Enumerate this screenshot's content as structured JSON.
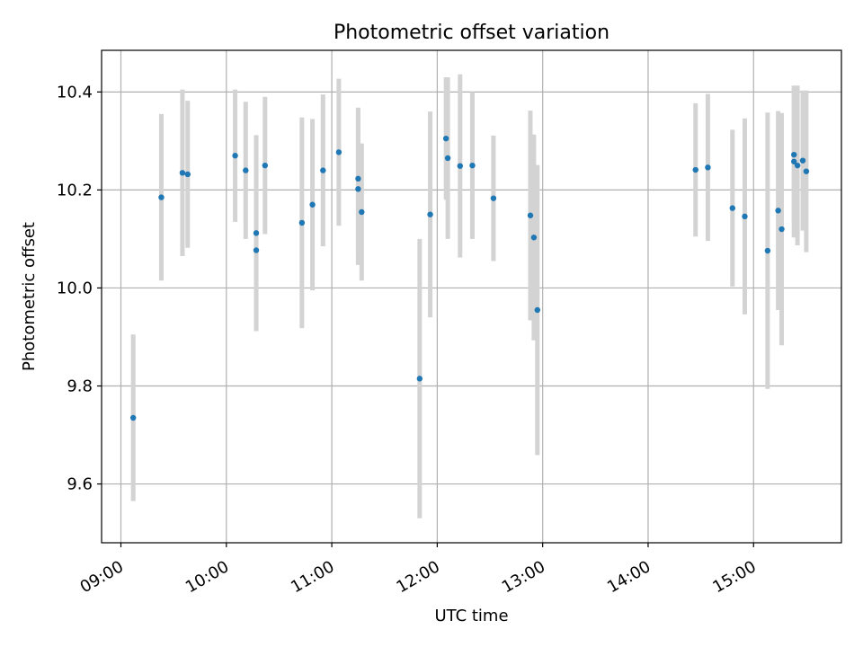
{
  "chart_data": {
    "type": "scatter",
    "title": "Photometric offset variation",
    "xlabel": "UTC time",
    "ylabel": "Photometric offset",
    "xlim": [
      "08:49",
      "15:50"
    ],
    "ylim": [
      9.48,
      10.485
    ],
    "x_ticks": [
      "09:00",
      "10:00",
      "11:00",
      "12:00",
      "13:00",
      "14:00",
      "15:00"
    ],
    "y_ticks": [
      9.6,
      9.8,
      10.0,
      10.2,
      10.4
    ],
    "grid": true,
    "colors": {
      "points": "#1f77b4",
      "errorbars": "#d3d3d3"
    },
    "points": [
      {
        "x": "09:07",
        "y": 9.735,
        "err": 0.17
      },
      {
        "x": "09:23",
        "y": 10.185,
        "err": 0.17
      },
      {
        "x": "09:35",
        "y": 10.235,
        "err": 0.17
      },
      {
        "x": "09:38",
        "y": 10.232,
        "err": 0.15
      },
      {
        "x": "10:05",
        "y": 10.27,
        "err": 0.135
      },
      {
        "x": "10:11",
        "y": 10.24,
        "err": 0.14
      },
      {
        "x": "10:17",
        "y": 10.112,
        "err": 0.2
      },
      {
        "x": "10:17",
        "y": 10.077,
        "err": 0.165
      },
      {
        "x": "10:22",
        "y": 10.25,
        "err": 0.14
      },
      {
        "x": "10:43",
        "y": 10.133,
        "err": 0.215
      },
      {
        "x": "10:49",
        "y": 10.17,
        "err": 0.175
      },
      {
        "x": "10:55",
        "y": 10.24,
        "err": 0.155
      },
      {
        "x": "11:04",
        "y": 10.277,
        "err": 0.15
      },
      {
        "x": "11:15",
        "y": 10.223,
        "err": 0.145
      },
      {
        "x": "11:15",
        "y": 10.202,
        "err": 0.155
      },
      {
        "x": "11:17",
        "y": 10.155,
        "err": 0.14
      },
      {
        "x": "11:50",
        "y": 9.815,
        "err": 0.285
      },
      {
        "x": "11:56",
        "y": 10.15,
        "err": 0.21
      },
      {
        "x": "12:05",
        "y": 10.305,
        "err": 0.125
      },
      {
        "x": "12:06",
        "y": 10.265,
        "err": 0.165
      },
      {
        "x": "12:13",
        "y": 10.249,
        "err": 0.187
      },
      {
        "x": "12:20",
        "y": 10.25,
        "err": 0.15
      },
      {
        "x": "12:32",
        "y": 10.183,
        "err": 0.128
      },
      {
        "x": "12:53",
        "y": 10.148,
        "err": 0.214
      },
      {
        "x": "12:55",
        "y": 10.103,
        "err": 0.21
      },
      {
        "x": "12:57",
        "y": 9.955,
        "err": 0.296
      },
      {
        "x": "14:27",
        "y": 10.241,
        "err": 0.136
      },
      {
        "x": "14:34",
        "y": 10.246,
        "err": 0.15
      },
      {
        "x": "14:48",
        "y": 10.163,
        "err": 0.16
      },
      {
        "x": "14:55",
        "y": 10.146,
        "err": 0.2
      },
      {
        "x": "15:08",
        "y": 10.076,
        "err": 0.282
      },
      {
        "x": "15:14",
        "y": 10.158,
        "err": 0.203
      },
      {
        "x": "15:16",
        "y": 10.12,
        "err": 0.237
      },
      {
        "x": "15:23",
        "y": 10.272,
        "err": 0.14
      },
      {
        "x": "15:23",
        "y": 10.258,
        "err": 0.155
      },
      {
        "x": "15:25",
        "y": 10.25,
        "err": 0.163
      },
      {
        "x": "15:28",
        "y": 10.26,
        "err": 0.143
      },
      {
        "x": "15:30",
        "y": 10.238,
        "err": 0.165
      }
    ]
  }
}
